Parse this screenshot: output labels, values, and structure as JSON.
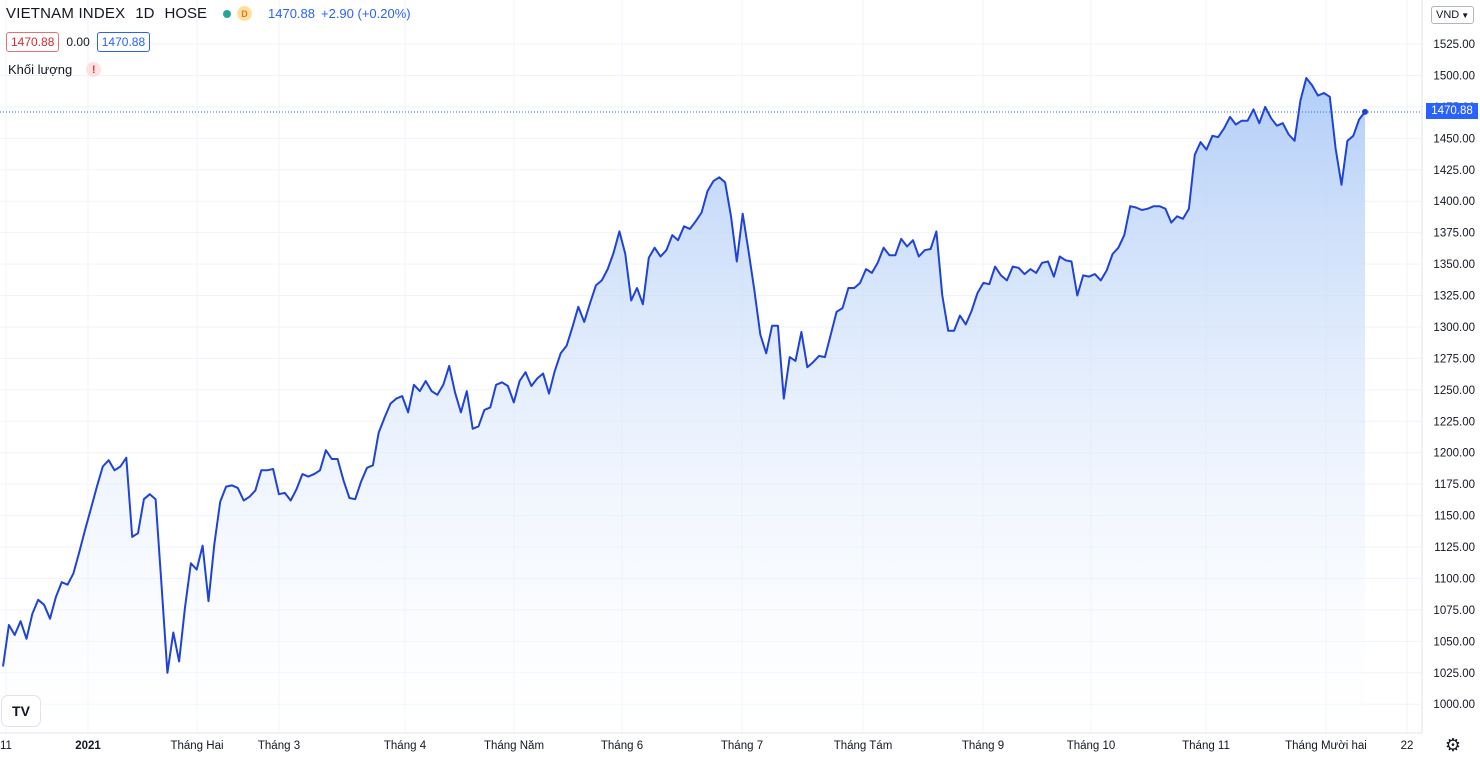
{
  "header": {
    "symbol": "VIETNAM INDEX",
    "interval": "1D",
    "exchange": "HOSE",
    "market_badge": "D",
    "last_price": "1470.88",
    "change": "+2.90 (+0.20%)",
    "bid_box": "1470.88",
    "spread": "0.00",
    "ask_box": "1470.88",
    "volume_label": "Khối lượng",
    "volume_warning": "!"
  },
  "currency": "VND",
  "logo_text": "TV",
  "settings_icon": "gear-icon",
  "colors": {
    "line": "#1f43d6",
    "area_top": "#aecbf7",
    "area_bottom": "#ffffff",
    "price_tag": "#2962ff",
    "grid": "#f0f3fa"
  },
  "chart_data": {
    "type": "area",
    "title": "VIETNAM INDEX",
    "ylim": [
      977,
      1527
    ],
    "y_ticks": [
      "1525.00",
      "1500.00",
      "1475.00",
      "1450.00",
      "1425.00",
      "1400.00",
      "1375.00",
      "1350.00",
      "1325.00",
      "1300.00",
      "1275.00",
      "1250.00",
      "1225.00",
      "1200.00",
      "1175.00",
      "1150.00",
      "1125.00",
      "1100.00",
      "1075.00",
      "1050.00",
      "1025.00",
      "1000.00"
    ],
    "x_ticks": [
      "11",
      "2021",
      "Tháng Hai",
      "Tháng 3",
      "Tháng 4",
      "Tháng Năm",
      "Tháng 6",
      "Tháng 7",
      "Tháng Tám",
      "Tháng 9",
      "Tháng 10",
      "Tháng 11",
      "Tháng Mười hai",
      "22"
    ],
    "last_value": "1470.88",
    "grid": true,
    "series": [
      {
        "values": [
          1030,
          1063,
          1055,
          1066,
          1052,
          1072,
          1083,
          1079,
          1068,
          1085,
          1097,
          1095,
          1104,
          1121,
          1139,
          1156,
          1173,
          1189,
          1194,
          1186,
          1189,
          1196,
          1133,
          1136,
          1163,
          1167,
          1163,
          1095,
          1025,
          1057,
          1034,
          1077,
          1112,
          1107,
          1126,
          1082,
          1127,
          1161,
          1173,
          1174,
          1172,
          1162,
          1165,
          1170,
          1186,
          1186,
          1187,
          1167,
          1168,
          1162,
          1171,
          1183,
          1181,
          1183,
          1186,
          1202,
          1195,
          1195,
          1178,
          1164,
          1163,
          1177,
          1188,
          1190,
          1216,
          1228,
          1239,
          1243,
          1245,
          1232,
          1254,
          1249,
          1257,
          1249,
          1246,
          1254,
          1269,
          1248,
          1232,
          1249,
          1219,
          1221,
          1234,
          1236,
          1254,
          1256,
          1253,
          1240,
          1257,
          1264,
          1253,
          1259,
          1263,
          1247,
          1265,
          1279,
          1285,
          1300,
          1316,
          1304,
          1319,
          1333,
          1337,
          1346,
          1359,
          1376,
          1358,
          1321,
          1331,
          1318,
          1355,
          1363,
          1356,
          1361,
          1373,
          1369,
          1380,
          1378,
          1384,
          1391,
          1408,
          1416,
          1419,
          1415,
          1388,
          1352,
          1390,
          1360,
          1329,
          1294,
          1279,
          1301,
          1301,
          1243,
          1276,
          1273,
          1296,
          1268,
          1272,
          1277,
          1276,
          1294,
          1312,
          1315,
          1331,
          1331,
          1335,
          1346,
          1343,
          1351,
          1363,
          1357,
          1357,
          1370,
          1364,
          1369,
          1356,
          1361,
          1362,
          1376,
          1325,
          1297,
          1297,
          1309,
          1302,
          1313,
          1327,
          1335,
          1334,
          1348,
          1341,
          1337,
          1348,
          1347,
          1342,
          1346,
          1343,
          1351,
          1352,
          1340,
          1356,
          1353,
          1352,
          1325,
          1341,
          1340,
          1342,
          1337,
          1345,
          1358,
          1363,
          1373,
          1396,
          1395,
          1393,
          1394,
          1396,
          1396,
          1394,
          1383,
          1388,
          1386,
          1394,
          1437,
          1447,
          1441,
          1452,
          1451,
          1458,
          1467,
          1461,
          1464,
          1464,
          1473,
          1462,
          1475,
          1466,
          1460,
          1462,
          1453,
          1448,
          1480,
          1498,
          1492,
          1484,
          1486,
          1483,
          1442,
          1413,
          1448,
          1452,
          1465,
          1471
        ]
      }
    ]
  }
}
